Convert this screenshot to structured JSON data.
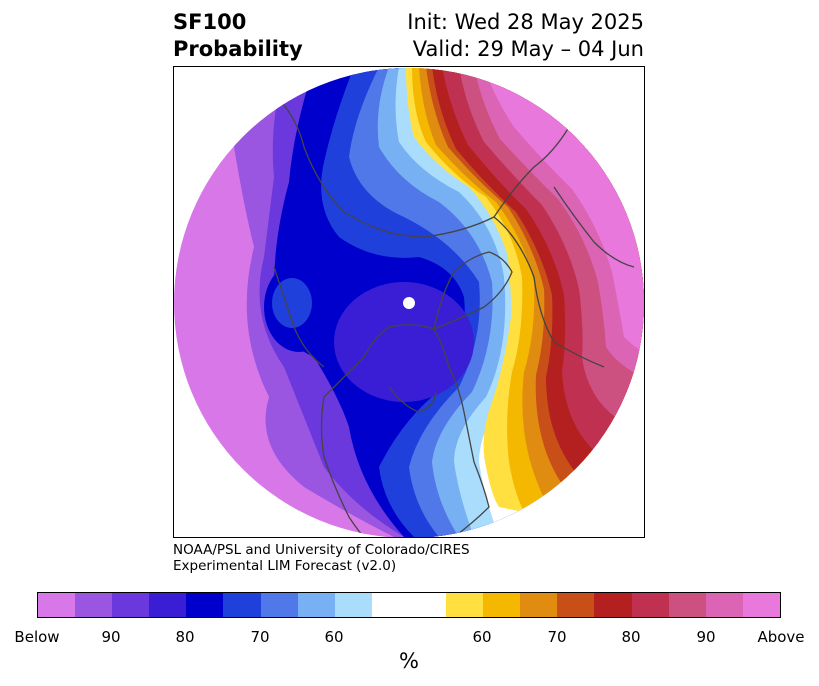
{
  "title": {
    "left_line1": "SF100",
    "left_line2": "Probability",
    "right_line1": "Init: Wed 28 May 2025",
    "right_line2": "Valid: 29 May – 04 Jun"
  },
  "credit": {
    "line1": "NOAA/PSL and University of Colorado/CIRES",
    "line2": "Experimental LIM Forecast (v2.0)"
  },
  "colorbar": {
    "unit": "%",
    "colors": [
      "#d878e8",
      "#9a56e0",
      "#6a38dc",
      "#3a1ed6",
      "#0000cc",
      "#2040dc",
      "#5078e8",
      "#78b0f4",
      "#aadcfc",
      "#ffffff",
      "#ffe040",
      "#f4b800",
      "#e08c10",
      "#c85018",
      "#b42020",
      "#c03050",
      "#cc5080",
      "#dc64b4",
      "#e878dc"
    ],
    "tick_labels": [
      "Below",
      "90",
      "80",
      "70",
      "60",
      "60",
      "70",
      "80",
      "90",
      "Above"
    ]
  },
  "map": {
    "projection": "north-polar-stereographic",
    "variable": "SF100 probability",
    "colors": {
      "below_outer": "#d878e8",
      "below_90": "#9a56e0",
      "below_85": "#6a38dc",
      "below_80": "#3a1ed6",
      "below_75": "#0000cc",
      "below_70": "#2040dc",
      "below_65": "#5078e8",
      "below_60": "#78b0f4",
      "below_55": "#aadcfc",
      "neutral": "#ffffff",
      "above_55": "#ffe040",
      "above_60": "#f4b800",
      "above_65": "#e08c10",
      "above_70": "#c85018",
      "above_75": "#b42020",
      "above_80": "#c03050",
      "above_85": "#cc5080",
      "above_90": "#dc64b4",
      "above_outer": "#e878dc",
      "coastline": "#444444"
    }
  }
}
